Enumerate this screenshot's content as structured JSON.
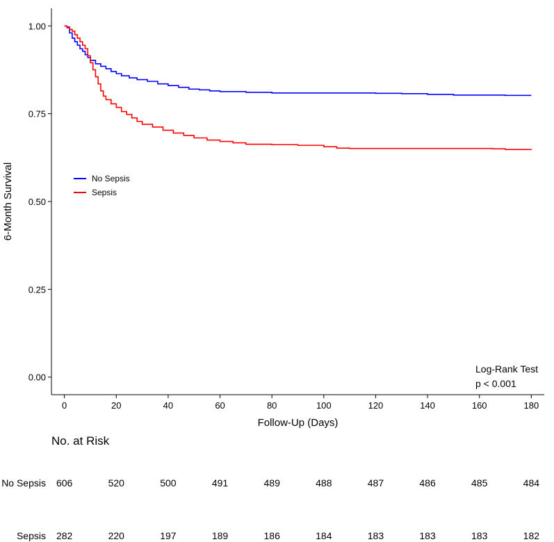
{
  "chart_data": {
    "type": "line",
    "subtype": "kaplan-meier",
    "xlabel": "Follow-Up (Days)",
    "ylabel": "6-Month Survival",
    "xlim": [
      -5,
      185
    ],
    "ylim": [
      -0.05,
      1.05
    ],
    "x_ticks": [
      0,
      20,
      40,
      60,
      80,
      100,
      120,
      140,
      160,
      180
    ],
    "y_ticks": [
      {
        "value": 0.0,
        "label": "0.00"
      },
      {
        "value": 0.25,
        "label": "0.25"
      },
      {
        "value": 0.5,
        "label": "0.50"
      },
      {
        "value": 0.75,
        "label": "0.75"
      },
      {
        "value": 1.0,
        "label": "1.00"
      }
    ],
    "legend": {
      "position": "left-middle"
    },
    "annotation": {
      "line1": "Log-Rank Test",
      "line2": "p < 0.001"
    },
    "series": [
      {
        "name": "No Sepsis",
        "color": "#0000ff",
        "points": [
          [
            0,
            1.0
          ],
          [
            1,
            0.995
          ],
          [
            2,
            0.98
          ],
          [
            3,
            0.965
          ],
          [
            4,
            0.955
          ],
          [
            5,
            0.945
          ],
          [
            6,
            0.935
          ],
          [
            7,
            0.928
          ],
          [
            8,
            0.918
          ],
          [
            9,
            0.91
          ],
          [
            10,
            0.902
          ],
          [
            12,
            0.892
          ],
          [
            14,
            0.885
          ],
          [
            16,
            0.878
          ],
          [
            18,
            0.87
          ],
          [
            20,
            0.864
          ],
          [
            22,
            0.858
          ],
          [
            25,
            0.852
          ],
          [
            28,
            0.847
          ],
          [
            32,
            0.842
          ],
          [
            36,
            0.835
          ],
          [
            40,
            0.83
          ],
          [
            44,
            0.825
          ],
          [
            48,
            0.82
          ],
          [
            52,
            0.818
          ],
          [
            56,
            0.815
          ],
          [
            60,
            0.813
          ],
          [
            70,
            0.811
          ],
          [
            80,
            0.809
          ],
          [
            100,
            0.809
          ],
          [
            110,
            0.809
          ],
          [
            120,
            0.808
          ],
          [
            130,
            0.807
          ],
          [
            140,
            0.805
          ],
          [
            150,
            0.803
          ],
          [
            160,
            0.803
          ],
          [
            170,
            0.802
          ],
          [
            180,
            0.802
          ]
        ]
      },
      {
        "name": "Sepsis",
        "color": "#ff0000",
        "points": [
          [
            0,
            1.0
          ],
          [
            1,
            0.997
          ],
          [
            2,
            0.99
          ],
          [
            3,
            0.985
          ],
          [
            4,
            0.975
          ],
          [
            5,
            0.965
          ],
          [
            6,
            0.955
          ],
          [
            7,
            0.945
          ],
          [
            8,
            0.935
          ],
          [
            9,
            0.915
          ],
          [
            10,
            0.895
          ],
          [
            11,
            0.875
          ],
          [
            12,
            0.855
          ],
          [
            13,
            0.835
          ],
          [
            14,
            0.815
          ],
          [
            15,
            0.8
          ],
          [
            16,
            0.79
          ],
          [
            18,
            0.778
          ],
          [
            20,
            0.768
          ],
          [
            22,
            0.756
          ],
          [
            24,
            0.748
          ],
          [
            26,
            0.738
          ],
          [
            28,
            0.728
          ],
          [
            30,
            0.72
          ],
          [
            34,
            0.712
          ],
          [
            38,
            0.703
          ],
          [
            42,
            0.695
          ],
          [
            46,
            0.688
          ],
          [
            50,
            0.681
          ],
          [
            55,
            0.675
          ],
          [
            60,
            0.671
          ],
          [
            65,
            0.667
          ],
          [
            70,
            0.663
          ],
          [
            80,
            0.662
          ],
          [
            90,
            0.66
          ],
          [
            100,
            0.656
          ],
          [
            105,
            0.652
          ],
          [
            110,
            0.651
          ],
          [
            120,
            0.651
          ],
          [
            140,
            0.651
          ],
          [
            160,
            0.651
          ],
          [
            165,
            0.65
          ],
          [
            170,
            0.648
          ],
          [
            180,
            0.647
          ]
        ]
      }
    ]
  },
  "risk_table": {
    "title": "No. at Risk",
    "times": [
      0,
      20,
      40,
      60,
      80,
      100,
      120,
      140,
      160,
      180
    ],
    "rows": [
      {
        "label": "No Sepsis",
        "values": [
          606,
          520,
          500,
          491,
          489,
          488,
          487,
          486,
          485,
          484
        ]
      },
      {
        "label": "Sepsis",
        "values": [
          282,
          220,
          197,
          189,
          186,
          184,
          183,
          183,
          183,
          182
        ]
      }
    ]
  }
}
